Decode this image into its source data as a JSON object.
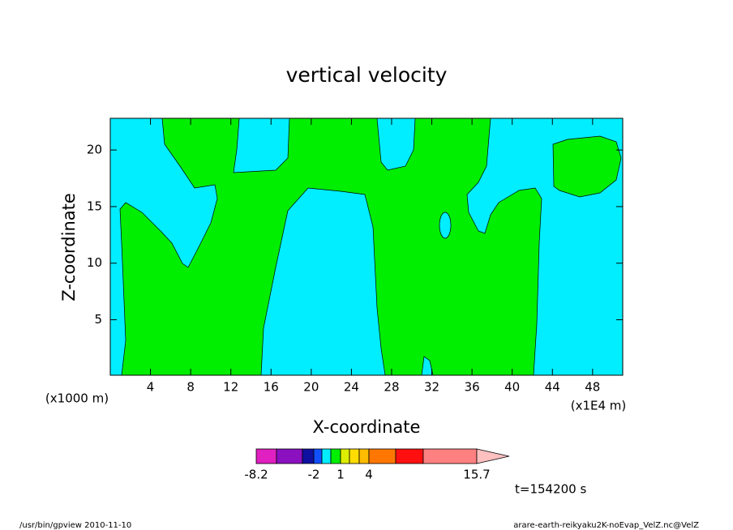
{
  "chart_data": {
    "type": "contour",
    "title": "vertical velocity",
    "x_label": "X-coordinate",
    "y_label": "Z-coordinate",
    "x_unit_left": "(x1000 m)",
    "x_unit_right": "(x1E4 m)",
    "xlim": [
      0,
      51
    ],
    "xticks": [
      4,
      8,
      12,
      16,
      20,
      24,
      28,
      32,
      36,
      40,
      44,
      48
    ],
    "ylim": [
      0.1,
      22.8
    ],
    "yticks": [
      5,
      10,
      15,
      20
    ],
    "colorbar": {
      "levels": [
        -8.2,
        null,
        null,
        -2,
        null,
        null,
        1,
        null,
        null,
        4,
        null,
        null,
        15.7
      ],
      "colors": [
        "#e020c0",
        "#8a10c0",
        "#1010a0",
        "#1050ff",
        "#00eeff",
        "#00ee00",
        "#ddee00",
        "#ffdd00",
        "#ffbb00",
        "#ff7700",
        "#ff1010",
        "#ff8080",
        "#ffc0c0"
      ]
    },
    "time_label": "t=154200 s",
    "footer_left": "/usr/bin/gpview  2010-11-10",
    "footer_right": "arare-earth-reikyaku2K-noEvap_VelZ.nc@VelZ"
  }
}
